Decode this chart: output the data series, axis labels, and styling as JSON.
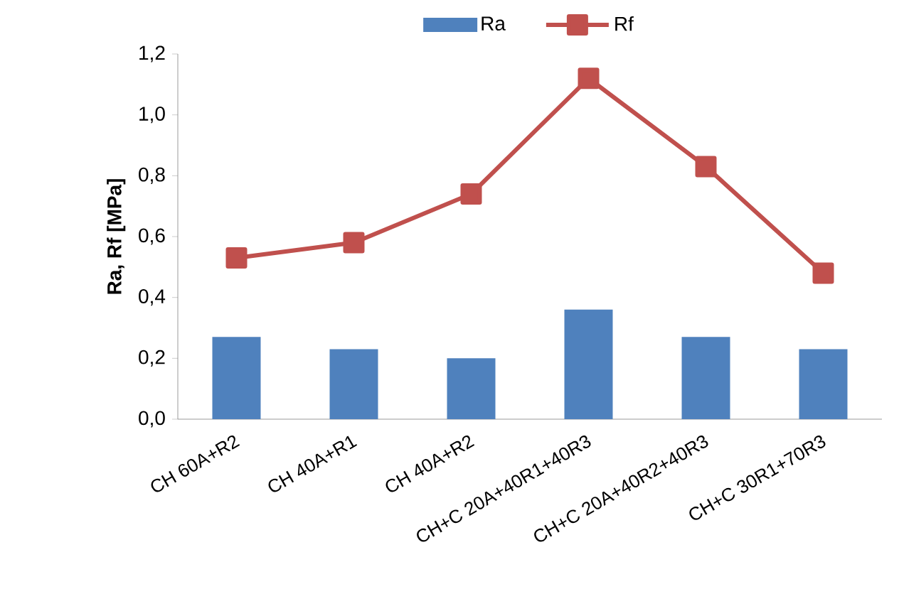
{
  "chart_data": {
    "type": "bar",
    "ylabel": "Ra, Rf [MPa]",
    "categories": [
      "CH 60A+R2",
      "CH 40A+R1",
      "CH 40A+R2",
      "CH+C 20A+40R1+40R3",
      "CH+C 20A+40R2+40R3",
      "CH+C 30R1+70R3"
    ],
    "series": [
      {
        "name": "Ra",
        "color": "#4f81bd",
        "values": [
          0.27,
          0.23,
          0.2,
          0.36,
          0.27,
          0.23
        ]
      },
      {
        "name": "Rf",
        "type": "line",
        "color": "#c0504d",
        "marker": "square",
        "line_style": "solid",
        "values": [
          0.53,
          0.58,
          0.74,
          1.12,
          0.83,
          0.48
        ]
      }
    ],
    "ylim": [
      0,
      1.2
    ],
    "yticks": [
      {
        "value": 0,
        "label": "0,0"
      },
      {
        "value": 0.2,
        "label": "0,2"
      },
      {
        "value": 0.4,
        "label": "0,4"
      },
      {
        "value": 0.6,
        "label": "0,6"
      },
      {
        "value": 0.8,
        "label": "0,8"
      },
      {
        "value": 1.0,
        "label": "1,0"
      },
      {
        "value": 1.2,
        "label": "1,2"
      }
    ],
    "grid": false,
    "legend": "top"
  }
}
